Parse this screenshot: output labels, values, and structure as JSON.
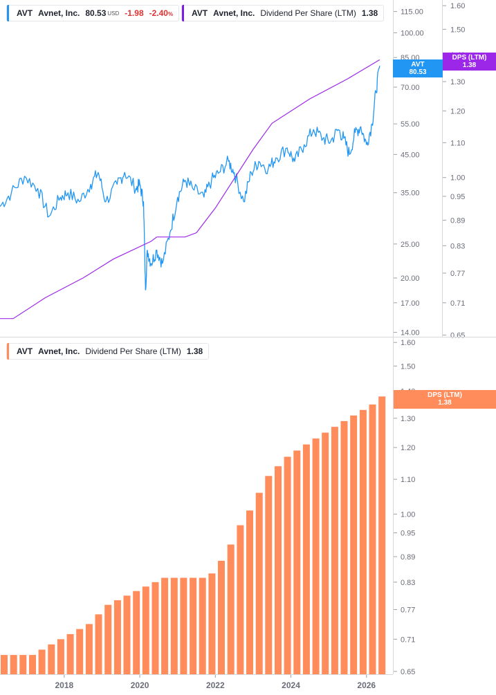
{
  "legend_top_price": {
    "ticker": "AVT",
    "name": "Avnet, Inc.",
    "price": "80.53",
    "currency": "USD",
    "change": "-1.98",
    "change_pct": "-2.40",
    "pct_sign": "%",
    "color": "#2196f3"
  },
  "legend_top_dps": {
    "ticker": "AVT",
    "name": "Avnet, Inc.",
    "metric": "Dividend Per Share (LTM)",
    "value": "1.38",
    "color": "#7b1fe0"
  },
  "legend_bottom": {
    "ticker": "AVT",
    "name": "Avnet, Inc.",
    "metric": "Dividend Per Share (LTM)",
    "value": "1.38",
    "color": "#ff8c5a"
  },
  "tags": {
    "price": {
      "line1": "AVT",
      "line2": "80.53",
      "color": "#2196f3"
    },
    "dps_top": {
      "line1": "DPS (LTM)",
      "line2": "1.38",
      "color": "#9c27e8"
    },
    "dps_bottom": {
      "line1": "DPS (LTM)",
      "line2": "1.38",
      "color": "#ff8c5a"
    }
  },
  "chart_data": [
    {
      "type": "line",
      "scale": "log",
      "price_axis_ticks": [
        "115.00",
        "100.00",
        "85.00",
        "70.00",
        "55.00",
        "45.00",
        "35.00",
        "25.00",
        "20.00",
        "17.00",
        "14.00"
      ],
      "price_axis_values": [
        115,
        100,
        85,
        70,
        55,
        45,
        35,
        25,
        20,
        17,
        14
      ],
      "dps_axis_ticks": [
        "1.60",
        "1.50",
        "1.40",
        "1.30",
        "1.20",
        "1.10",
        "1.00",
        "0.95",
        "0.89",
        "0.83",
        "0.77",
        "0.71",
        "0.65"
      ],
      "dps_axis_values": [
        1.6,
        1.5,
        1.4,
        1.3,
        1.2,
        1.1,
        1.0,
        0.95,
        0.89,
        0.83,
        0.77,
        0.71,
        0.65
      ],
      "price_range": [
        13.6,
        124
      ],
      "dps_range": [
        0.647,
        1.625
      ],
      "series": [
        {
          "name": "AVT",
          "color": "#2196f3",
          "x": [
            2016.0,
            2016.3,
            2016.6,
            2016.95,
            2017.3,
            2017.6,
            2017.9,
            2018.1,
            2018.4,
            2018.7,
            2018.9,
            2019.1,
            2019.4,
            2019.6,
            2019.9,
            2020.0,
            2020.1,
            2020.15,
            2020.2,
            2020.3,
            2020.45,
            2020.6,
            2020.8,
            2021.0,
            2021.2,
            2021.4,
            2021.7,
            2021.9,
            2022.1,
            2022.35,
            2022.5,
            2022.75,
            2022.95,
            2023.15,
            2023.4,
            2023.6,
            2023.9,
            2024.1,
            2024.35,
            2024.6,
            2024.85,
            2025.05,
            2025.25,
            2025.4,
            2025.55,
            2025.7,
            2025.85,
            2026.0,
            2026.15,
            2026.25,
            2026.35
          ],
          "y": [
            31,
            32,
            35,
            39,
            36,
            30,
            34,
            35,
            33,
            37,
            40,
            33,
            37,
            40,
            36,
            37,
            33,
            18.5,
            24,
            22,
            24,
            22,
            27,
            34,
            38,
            36,
            34,
            38,
            40,
            43,
            40,
            33,
            40,
            43,
            41,
            44,
            47,
            43,
            48,
            53,
            50,
            49,
            53,
            50,
            45,
            52,
            54,
            48,
            55,
            68,
            80.53
          ]
        },
        {
          "name": "DPS (LTM)",
          "color": "#9c27e8",
          "x": [
            2016.0,
            2016.15,
            2016.65,
            2017.5,
            2018.5,
            2019.3,
            2020.3,
            2020.45,
            2021.2,
            2021.5,
            2022.0,
            2023.0,
            2023.5,
            2024.5,
            2025.5,
            2026.35
          ],
          "y": [
            0.66,
            0.68,
            0.68,
            0.72,
            0.76,
            0.8,
            0.84,
            0.85,
            0.85,
            0.86,
            0.92,
            1.08,
            1.16,
            1.24,
            1.31,
            1.38
          ]
        }
      ]
    },
    {
      "type": "bar",
      "scale": "log",
      "dps_axis_ticks": [
        "1.60",
        "1.50",
        "1.40",
        "1.30",
        "1.20",
        "1.10",
        "1.00",
        "0.95",
        "0.89",
        "0.83",
        "0.77",
        "0.71",
        "0.65"
      ],
      "dps_axis_values": [
        1.6,
        1.5,
        1.4,
        1.3,
        1.2,
        1.1,
        1.0,
        0.95,
        0.89,
        0.83,
        0.77,
        0.71,
        0.65
      ],
      "dps_range": [
        0.645,
        1.625
      ],
      "x_ticks": [
        "2018",
        "2020",
        "2022",
        "2024",
        "2026"
      ],
      "x_tick_values": [
        2018,
        2020,
        2022,
        2024,
        2026
      ],
      "x_range": [
        2016.3,
        2026.7
      ],
      "series": [
        {
          "name": "DPS (LTM)",
          "color": "#ff8c5a",
          "x": [
            2016.41,
            2016.66,
            2016.91,
            2017.16,
            2017.41,
            2017.66,
            2017.91,
            2018.16,
            2018.41,
            2018.66,
            2018.91,
            2019.16,
            2019.41,
            2019.66,
            2019.91,
            2020.16,
            2020.41,
            2020.66,
            2020.91,
            2021.16,
            2021.41,
            2021.66,
            2021.91,
            2022.16,
            2022.41,
            2022.66,
            2022.91,
            2023.16,
            2023.41,
            2023.66,
            2023.91,
            2024.16,
            2024.41,
            2024.66,
            2024.91,
            2025.16,
            2025.41,
            2025.66,
            2025.91,
            2026.16,
            2026.41
          ],
          "values": [
            0.68,
            0.68,
            0.68,
            0.68,
            0.69,
            0.7,
            0.71,
            0.72,
            0.73,
            0.74,
            0.76,
            0.78,
            0.79,
            0.8,
            0.81,
            0.82,
            0.83,
            0.84,
            0.84,
            0.84,
            0.84,
            0.84,
            0.85,
            0.88,
            0.92,
            0.97,
            1.01,
            1.06,
            1.11,
            1.14,
            1.17,
            1.19,
            1.21,
            1.23,
            1.25,
            1.27,
            1.29,
            1.31,
            1.33,
            1.35,
            1.38
          ]
        }
      ]
    }
  ]
}
